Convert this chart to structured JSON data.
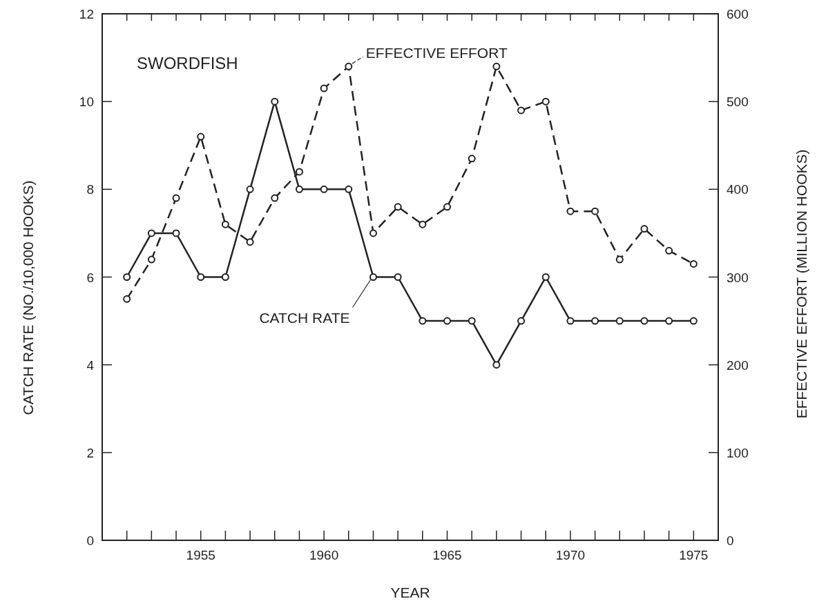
{
  "chart_data": {
    "type": "line",
    "xlabel": "YEAR",
    "ylabel": "CATCH RATE (NO./10,000 HOOKS)",
    "y2label": "EFFECTIVE EFFORT (MILLION HOOKS)",
    "annotations": [
      "SWORDFISH"
    ],
    "x": [
      1952,
      1953,
      1954,
      1955,
      1956,
      1957,
      1958,
      1959,
      1960,
      1961,
      1962,
      1963,
      1964,
      1965,
      1966,
      1967,
      1968,
      1969,
      1970,
      1971,
      1972,
      1973,
      1974,
      1975
    ],
    "series": [
      {
        "name": "CATCH RATE",
        "color": "#222222",
        "line_style": "solid",
        "values": [
          6,
          7,
          7,
          6,
          6,
          8,
          10,
          8,
          8,
          8,
          6,
          6,
          5,
          5,
          5,
          4,
          5,
          6,
          5,
          5,
          5,
          5,
          5,
          5
        ]
      },
      {
        "name": "EFFECTIVE EFFORT",
        "color": "#222222",
        "line_style": "dashed",
        "axis": "y2",
        "values": [
          275,
          320,
          390,
          460,
          360,
          340,
          390,
          420,
          515,
          540,
          350,
          380,
          360,
          380,
          435,
          540,
          490,
          500,
          375,
          375,
          320,
          355,
          330,
          315
        ]
      }
    ],
    "marker": "circle",
    "grid": false,
    "xlim": [
      1951,
      1976
    ],
    "xticks": [
      {
        "value": 1952,
        "label": null
      },
      {
        "value": 1953,
        "label": null
      },
      {
        "value": 1954,
        "label": null
      },
      1955,
      {
        "value": 1956,
        "label": null
      },
      {
        "value": 1957,
        "label": null
      },
      {
        "value": 1958,
        "label": null
      },
      {
        "value": 1959,
        "label": null
      },
      1960,
      {
        "value": 1961,
        "label": null
      },
      {
        "value": 1962,
        "label": null
      },
      {
        "value": 1963,
        "label": null
      },
      {
        "value": 1964,
        "label": null
      },
      1965,
      {
        "value": 1966,
        "label": null
      },
      {
        "value": 1967,
        "label": null
      },
      {
        "value": 1968,
        "label": null
      },
      {
        "value": 1969,
        "label": null
      },
      1970,
      {
        "value": 1971,
        "label": null
      },
      {
        "value": 1972,
        "label": null
      },
      {
        "value": 1973,
        "label": null
      },
      {
        "value": 1974,
        "label": null
      },
      1975
    ],
    "ylim": [
      0,
      12
    ],
    "yticks": [
      0,
      2,
      4,
      6,
      8,
      10,
      12
    ],
    "y2lim": [
      0,
      600
    ],
    "y2ticks": [
      0,
      100,
      200,
      300,
      400,
      500,
      600
    ]
  }
}
